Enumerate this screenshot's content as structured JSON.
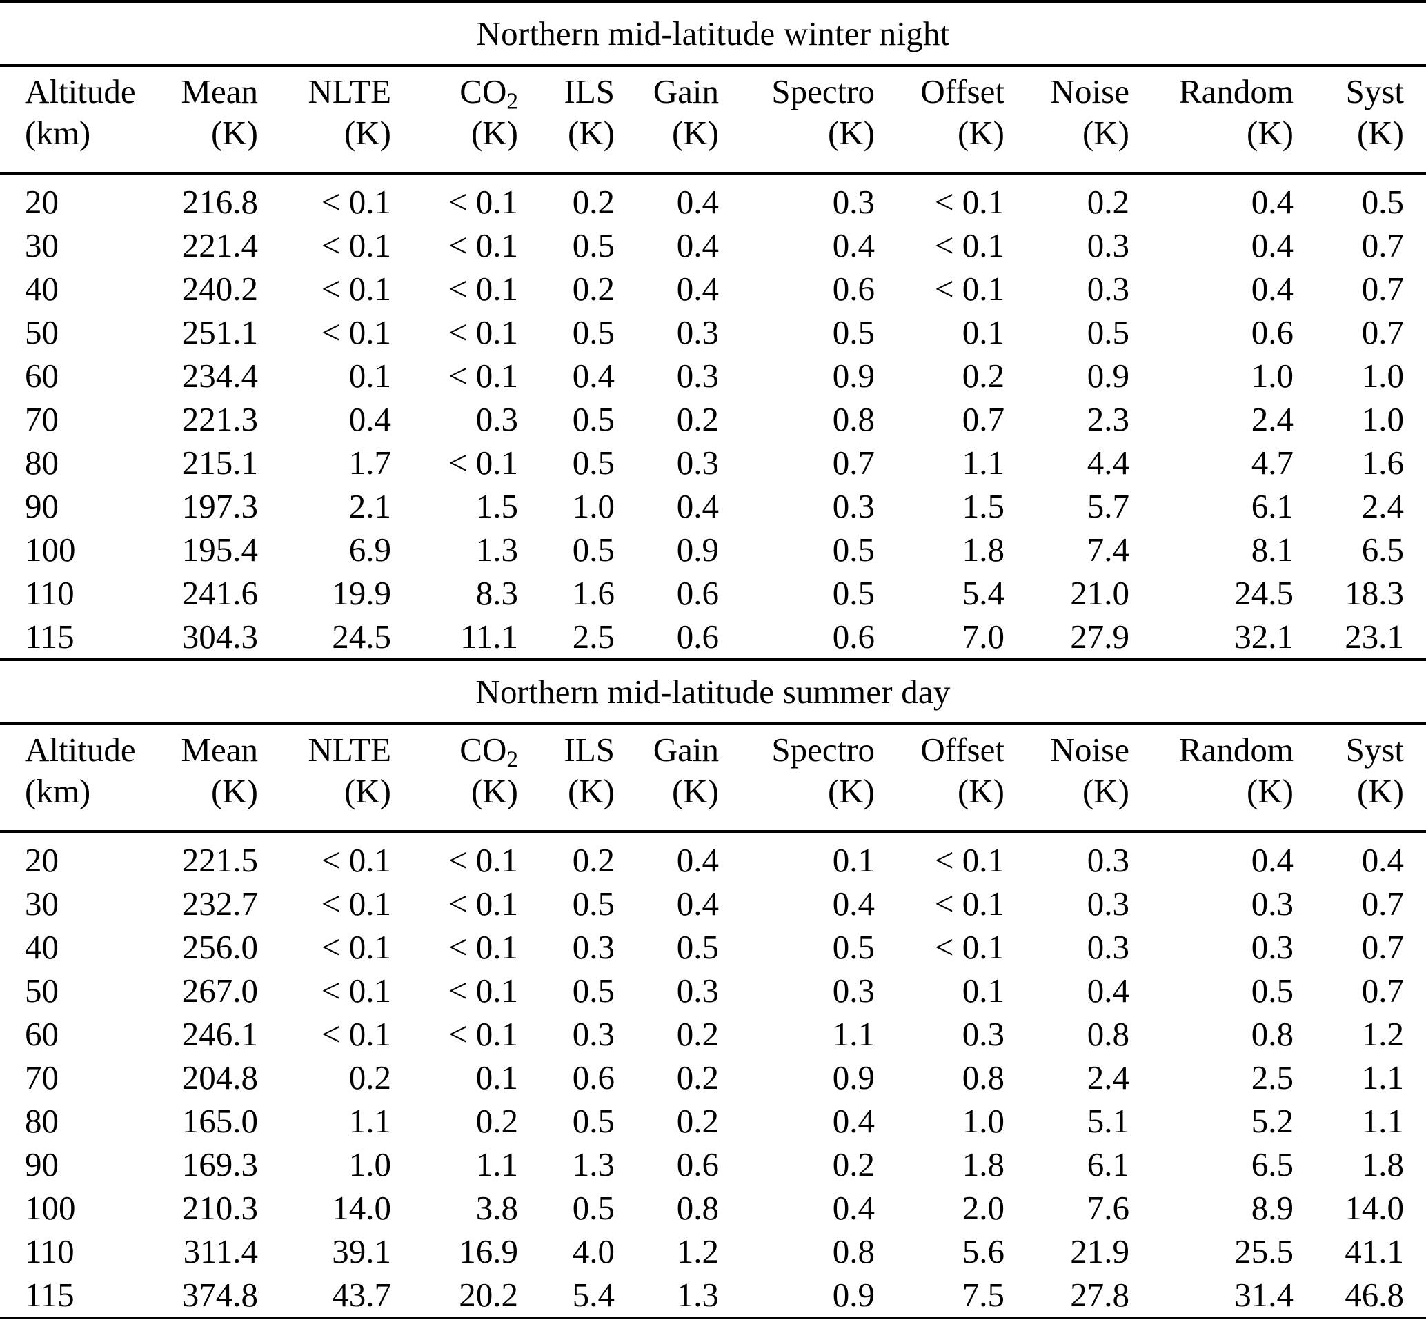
{
  "table": {
    "columns": [
      {
        "label": "Altitude",
        "sub": "",
        "unit": "(km)"
      },
      {
        "label": "Mean",
        "sub": "",
        "unit": "(K)"
      },
      {
        "label": "NLTE",
        "sub": "",
        "unit": "(K)"
      },
      {
        "label": "CO",
        "sub": "2",
        "unit": "(K)"
      },
      {
        "label": "ILS",
        "sub": "",
        "unit": "(K)"
      },
      {
        "label": "Gain",
        "sub": "",
        "unit": "(K)"
      },
      {
        "label": "Spectro",
        "sub": "",
        "unit": "(K)"
      },
      {
        "label": "Offset",
        "sub": "",
        "unit": "(K)"
      },
      {
        "label": "Noise",
        "sub": "",
        "unit": "(K)"
      },
      {
        "label": "Random",
        "sub": "",
        "unit": "(K)"
      },
      {
        "label": "Syst",
        "sub": "",
        "unit": "(K)"
      }
    ],
    "sections": [
      {
        "title": "Northern mid-latitude winter night",
        "rows": [
          [
            "20",
            "216.8",
            "< 0.1",
            "< 0.1",
            "0.2",
            "0.4",
            "0.3",
            "< 0.1",
            "0.2",
            "0.4",
            "0.5"
          ],
          [
            "30",
            "221.4",
            "< 0.1",
            "< 0.1",
            "0.5",
            "0.4",
            "0.4",
            "< 0.1",
            "0.3",
            "0.4",
            "0.7"
          ],
          [
            "40",
            "240.2",
            "< 0.1",
            "< 0.1",
            "0.2",
            "0.4",
            "0.6",
            "< 0.1",
            "0.3",
            "0.4",
            "0.7"
          ],
          [
            "50",
            "251.1",
            "< 0.1",
            "< 0.1",
            "0.5",
            "0.3",
            "0.5",
            "0.1",
            "0.5",
            "0.6",
            "0.7"
          ],
          [
            "60",
            "234.4",
            "0.1",
            "< 0.1",
            "0.4",
            "0.3",
            "0.9",
            "0.2",
            "0.9",
            "1.0",
            "1.0"
          ],
          [
            "70",
            "221.3",
            "0.4",
            "0.3",
            "0.5",
            "0.2",
            "0.8",
            "0.7",
            "2.3",
            "2.4",
            "1.0"
          ],
          [
            "80",
            "215.1",
            "1.7",
            "< 0.1",
            "0.5",
            "0.3",
            "0.7",
            "1.1",
            "4.4",
            "4.7",
            "1.6"
          ],
          [
            "90",
            "197.3",
            "2.1",
            "1.5",
            "1.0",
            "0.4",
            "0.3",
            "1.5",
            "5.7",
            "6.1",
            "2.4"
          ],
          [
            "100",
            "195.4",
            "6.9",
            "1.3",
            "0.5",
            "0.9",
            "0.5",
            "1.8",
            "7.4",
            "8.1",
            "6.5"
          ],
          [
            "110",
            "241.6",
            "19.9",
            "8.3",
            "1.6",
            "0.6",
            "0.5",
            "5.4",
            "21.0",
            "24.5",
            "18.3"
          ],
          [
            "115",
            "304.3",
            "24.5",
            "11.1",
            "2.5",
            "0.6",
            "0.6",
            "7.0",
            "27.9",
            "32.1",
            "23.1"
          ]
        ]
      },
      {
        "title": "Northern mid-latitude summer day",
        "rows": [
          [
            "20",
            "221.5",
            "< 0.1",
            "< 0.1",
            "0.2",
            "0.4",
            "0.1",
            "< 0.1",
            "0.3",
            "0.4",
            "0.4"
          ],
          [
            "30",
            "232.7",
            "< 0.1",
            "< 0.1",
            "0.5",
            "0.4",
            "0.4",
            "< 0.1",
            "0.3",
            "0.3",
            "0.7"
          ],
          [
            "40",
            "256.0",
            "< 0.1",
            "< 0.1",
            "0.3",
            "0.5",
            "0.5",
            "< 0.1",
            "0.3",
            "0.3",
            "0.7"
          ],
          [
            "50",
            "267.0",
            "< 0.1",
            "< 0.1",
            "0.5",
            "0.3",
            "0.3",
            "0.1",
            "0.4",
            "0.5",
            "0.7"
          ],
          [
            "60",
            "246.1",
            "< 0.1",
            "< 0.1",
            "0.3",
            "0.2",
            "1.1",
            "0.3",
            "0.8",
            "0.8",
            "1.2"
          ],
          [
            "70",
            "204.8",
            "0.2",
            "0.1",
            "0.6",
            "0.2",
            "0.9",
            "0.8",
            "2.4",
            "2.5",
            "1.1"
          ],
          [
            "80",
            "165.0",
            "1.1",
            "0.2",
            "0.5",
            "0.2",
            "0.4",
            "1.0",
            "5.1",
            "5.2",
            "1.1"
          ],
          [
            "90",
            "169.3",
            "1.0",
            "1.1",
            "1.3",
            "0.6",
            "0.2",
            "1.8",
            "6.1",
            "6.5",
            "1.8"
          ],
          [
            "100",
            "210.3",
            "14.0",
            "3.8",
            "0.5",
            "0.8",
            "0.4",
            "2.0",
            "7.6",
            "8.9",
            "14.0"
          ],
          [
            "110",
            "311.4",
            "39.1",
            "16.9",
            "4.0",
            "1.2",
            "0.8",
            "5.6",
            "21.9",
            "25.5",
            "41.1"
          ],
          [
            "115",
            "374.8",
            "43.7",
            "20.2",
            "5.4",
            "1.3",
            "0.9",
            "7.5",
            "27.8",
            "31.4",
            "46.8"
          ]
        ]
      }
    ]
  }
}
